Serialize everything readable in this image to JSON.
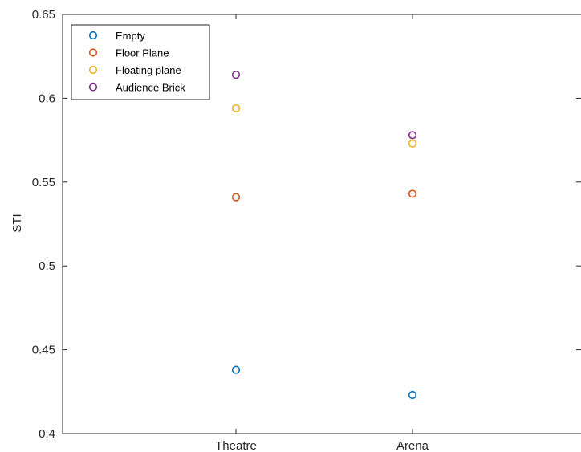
{
  "chart_data": {
    "type": "scatter",
    "ylabel": "STI",
    "xlabel": "",
    "title": "",
    "categories": [
      "Theatre",
      "Arena"
    ],
    "ylim": [
      0.4,
      0.65
    ],
    "yticks": [
      "0.4",
      "0.45",
      "0.5",
      "0.55",
      "0.6",
      "0.65"
    ],
    "grid": false,
    "legend_position": "top-left",
    "marker": "open-circle",
    "series": [
      {
        "name": "Empty",
        "color": "#0072BD",
        "values": [
          0.438,
          0.423
        ]
      },
      {
        "name": "Floor Plane",
        "color": "#D95319",
        "values": [
          0.541,
          0.543
        ]
      },
      {
        "name": "Floating plane",
        "color": "#EDB120",
        "values": [
          0.594,
          0.573
        ]
      },
      {
        "name": "Audience Brick",
        "color": "#7E2F8E",
        "values": [
          0.614,
          0.578
        ]
      }
    ]
  }
}
